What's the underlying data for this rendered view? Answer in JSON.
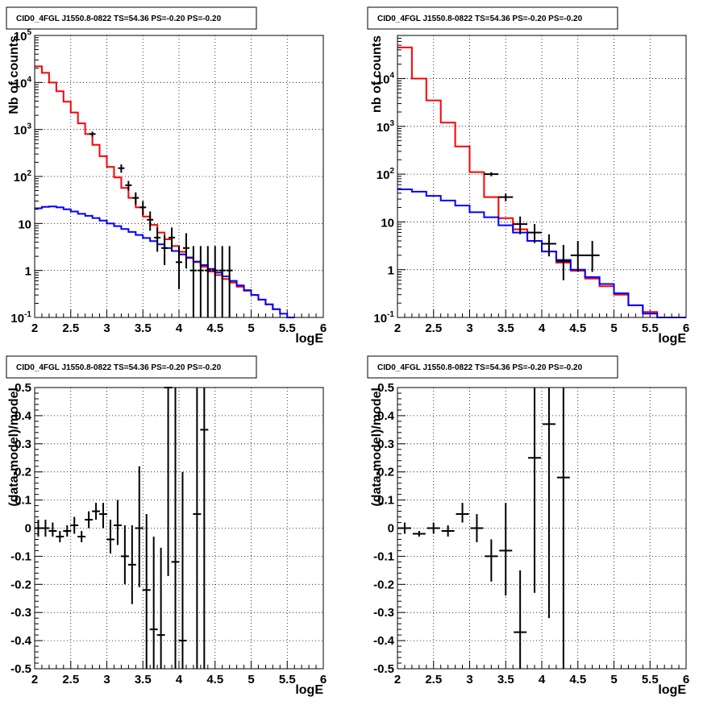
{
  "chart_data": [
    {
      "type": "step-histogram",
      "title": "CID0_4FGL J1550.8-0822 TS=54.36 PS=-0.20 PS=-0.20",
      "xlabel": "logE",
      "ylabel": "Nb of counts",
      "xlim": [
        2,
        6
      ],
      "ylim": [
        0.1,
        100000
      ],
      "yscale": "log",
      "grid": true,
      "x_ticks": [
        "2",
        "2.5",
        "3",
        "3.5",
        "4",
        "4.5",
        "5",
        "5.5",
        "6"
      ],
      "y_ticks": [
        {
          "v": 0.1,
          "label": "10",
          "sup": "-1"
        },
        {
          "v": 1,
          "label": "1",
          "sup": ""
        },
        {
          "v": 10,
          "label": "10",
          "sup": ""
        },
        {
          "v": 100,
          "label": "10",
          "sup": "2"
        },
        {
          "v": 1000,
          "label": "10",
          "sup": "3"
        },
        {
          "v": 10000,
          "label": "10",
          "sup": "4"
        },
        {
          "v": 100000,
          "label": "10",
          "sup": "5"
        }
      ],
      "series": [
        {
          "color": "#ff0000",
          "bin_width": 0.1,
          "x_start": 2.0,
          "values": [
            22000,
            16000,
            10000,
            6500,
            3900,
            2300,
            1350,
            800,
            470,
            270,
            160,
            95,
            57,
            35,
            22,
            14,
            9.3,
            6.4,
            4.6,
            3.3,
            2.5,
            1.9,
            1.5,
            1.2,
            0.95,
            0.8,
            0.66,
            0.55,
            0.45,
            0.37,
            0.3,
            0.24,
            0.19,
            0.15
          ]
        },
        {
          "color": "#0000ff",
          "bin_width": 0.1,
          "x_start": 2.0,
          "values": [
            21,
            22.5,
            23,
            22,
            20,
            18,
            16,
            14.5,
            13,
            11.5,
            10,
            8.8,
            7.6,
            6.6,
            5.7,
            4.9,
            4.2,
            3.6,
            3.0,
            2.6,
            2.2,
            1.85,
            1.55,
            1.3,
            1.08,
            0.9,
            0.75,
            0.6,
            0.48,
            0.38,
            0.3,
            0.24,
            0.19,
            0.15,
            0.12,
            0.1
          ]
        }
      ],
      "data_points": {
        "color": "#000000",
        "x": [
          2.8,
          3.2,
          3.3,
          3.4,
          3.5,
          3.6,
          3.7,
          3.8,
          3.9,
          4.0,
          4.1,
          4.2,
          4.3,
          4.4,
          4.5,
          4.6,
          4.7
        ],
        "y": [
          800,
          150,
          65,
          35,
          22,
          12,
          5,
          3,
          5,
          1.5,
          3,
          1,
          1,
          1,
          1,
          1,
          1
        ],
        "ylo": [
          700,
          120,
          50,
          25,
          15,
          7,
          2.5,
          1.3,
          2.6,
          0.4,
          1.1,
          0.1,
          0.1,
          0.1,
          0.1,
          0.1,
          0.1
        ],
        "yhi": [
          900,
          180,
          80,
          46,
          30,
          18,
          8.2,
          5.6,
          8.2,
          3.3,
          6.2,
          3.3,
          3.3,
          3.3,
          3.3,
          3.3,
          3.3
        ]
      }
    },
    {
      "type": "step-histogram",
      "title": "CID0_4FGL J1550.8-0822 TS=54.36 PS=-0.20 PS=-0.20",
      "xlabel": "logE",
      "ylabel": "nb of counts",
      "xlim": [
        2,
        6
      ],
      "ylim": [
        0.1,
        80000
      ],
      "yscale": "log",
      "grid": true,
      "x_ticks": [
        "2",
        "2.5",
        "3",
        "3.5",
        "4",
        "4.5",
        "5",
        "5.5",
        "6"
      ],
      "y_ticks": [
        {
          "v": 0.1,
          "label": "10",
          "sup": "-1"
        },
        {
          "v": 1,
          "label": "1",
          "sup": ""
        },
        {
          "v": 10,
          "label": "10",
          "sup": ""
        },
        {
          "v": 100,
          "label": "10",
          "sup": "2"
        },
        {
          "v": 1000,
          "label": "10",
          "sup": "3"
        },
        {
          "v": 10000,
          "label": "10",
          "sup": "4"
        }
      ],
      "series": [
        {
          "color": "#ff0000",
          "bin_width": 0.2,
          "x_start": 2.0,
          "values": [
            45000,
            10000,
            3500,
            1200,
            380,
            110,
            33,
            12,
            7,
            4,
            2.4,
            1.4,
            0.95,
            0.65,
            0.45,
            0.3,
            0.18,
            0.13,
            0.1,
            0.1
          ]
        },
        {
          "color": "#0000ff",
          "bin_width": 0.2,
          "x_start": 2.0,
          "values": [
            48,
            43,
            35,
            28,
            22,
            16,
            12.5,
            8.5,
            6,
            4,
            2.4,
            1.6,
            1.0,
            0.7,
            0.5,
            0.32,
            0.18,
            0.12,
            0.1,
            0.1
          ]
        }
      ],
      "data_points": {
        "color": "#000000",
        "x": [
          3.3,
          3.5,
          3.7,
          3.9,
          4.1,
          4.3,
          4.5,
          4.7
        ],
        "y": [
          100,
          33,
          9,
          6,
          3.5,
          1.5,
          2,
          2
        ],
        "ylo": [
          90,
          27,
          5.5,
          3.6,
          1.9,
          0.6,
          0.9,
          0.9
        ],
        "yhi": [
          110,
          39,
          13,
          9,
          5.5,
          3.3,
          4,
          4
        ]
      }
    },
    {
      "type": "scatter-errorbar",
      "title": "CID0_4FGL J1550.8-0822 TS=54.36 PS=-0.20 PS=-0.20",
      "xlabel": "logE",
      "ylabel": "(data-model)/model",
      "xlim": [
        2,
        6
      ],
      "ylim": [
        -0.5,
        0.5
      ],
      "grid": true,
      "x_ticks": [
        "2",
        "2.5",
        "3",
        "3.5",
        "4",
        "4.5",
        "5",
        "5.5",
        "6"
      ],
      "y_ticks": [
        "-0.5",
        "-0.4",
        "-0.3",
        "-0.2",
        "-0.1",
        "0",
        "0.1",
        "0.2",
        "0.3",
        "0.4",
        "0.5"
      ],
      "points": {
        "x": [
          2.05,
          2.15,
          2.25,
          2.35,
          2.45,
          2.55,
          2.65,
          2.75,
          2.85,
          2.95,
          3.05,
          3.15,
          3.25,
          3.35,
          3.45,
          3.55,
          3.65,
          3.75,
          3.85,
          3.95,
          4.05,
          4.25,
          4.35
        ],
        "y": [
          0.0,
          0.0,
          -0.01,
          -0.03,
          -0.01,
          0.01,
          -0.03,
          0.03,
          0.06,
          0.05,
          -0.04,
          0.01,
          -0.1,
          -0.13,
          0.0,
          -0.22,
          -0.36,
          -0.38,
          0.5,
          -0.12,
          -0.4,
          0.05,
          0.35
        ],
        "ylo": [
          -0.03,
          -0.03,
          -0.03,
          -0.05,
          -0.03,
          -0.02,
          -0.05,
          0.0,
          0.03,
          0.0,
          -0.09,
          -0.06,
          -0.2,
          -0.27,
          -0.21,
          -0.5,
          -0.5,
          -0.5,
          -0.17,
          -0.5,
          -0.5,
          -0.5,
          -0.5
        ],
        "yhi": [
          0.03,
          0.03,
          0.02,
          -0.01,
          0.01,
          0.04,
          -0.01,
          0.06,
          0.09,
          0.09,
          0.03,
          0.1,
          0.01,
          0.01,
          0.22,
          0.05,
          -0.03,
          -0.07,
          0.5,
          0.5,
          0.2,
          0.5,
          0.5
        ]
      }
    },
    {
      "type": "scatter-errorbar",
      "title": "CID0_4FGL J1550.8-0822 TS=54.36 PS=-0.20 PS=-0.20",
      "xlabel": "logE",
      "ylabel": "(data-model)/model",
      "xlim": [
        2,
        6
      ],
      "ylim": [
        -0.5,
        0.5
      ],
      "grid": true,
      "x_ticks": [
        "2",
        "2.5",
        "3",
        "3.5",
        "4",
        "4.5",
        "5",
        "5.5",
        "6"
      ],
      "y_ticks": [
        "-0.5",
        "-0.4",
        "-0.3",
        "-0.2",
        "-0.1",
        "0",
        "0.1",
        "0.2",
        "0.3",
        "0.4",
        "0.5"
      ],
      "points": {
        "x": [
          2.1,
          2.3,
          2.5,
          2.7,
          2.9,
          3.1,
          3.3,
          3.5,
          3.7,
          3.9,
          4.1,
          4.3
        ],
        "y": [
          0.0,
          -0.02,
          0.0,
          -0.01,
          0.05,
          0.0,
          -0.1,
          -0.08,
          -0.37,
          0.25,
          0.37,
          0.18
        ],
        "ylo": [
          -0.02,
          -0.03,
          -0.02,
          -0.03,
          0.02,
          -0.05,
          -0.19,
          -0.24,
          -0.5,
          -0.23,
          -0.32,
          -0.5
        ],
        "yhi": [
          0.02,
          -0.01,
          0.02,
          0.01,
          0.09,
          0.05,
          -0.04,
          0.09,
          -0.15,
          0.5,
          0.5,
          0.5
        ]
      }
    }
  ]
}
